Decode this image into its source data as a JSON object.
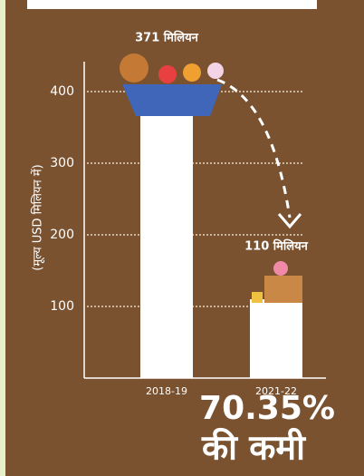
{
  "chart_data": {
    "type": "bar",
    "y_label": "(मूल्य USD मिलियन में)",
    "categories": [
      "2018-19",
      "2021-22"
    ],
    "values": [
      371,
      110
    ],
    "value_labels": [
      "371 मिलियन",
      "110 मिलियन"
    ],
    "color": "#ffffff",
    "ylim": [
      0,
      400
    ],
    "yticks": [
      100,
      200,
      300,
      400
    ],
    "grid": true,
    "annotation": "70.35%",
    "annotation_subtitle": "की कमी"
  }
}
